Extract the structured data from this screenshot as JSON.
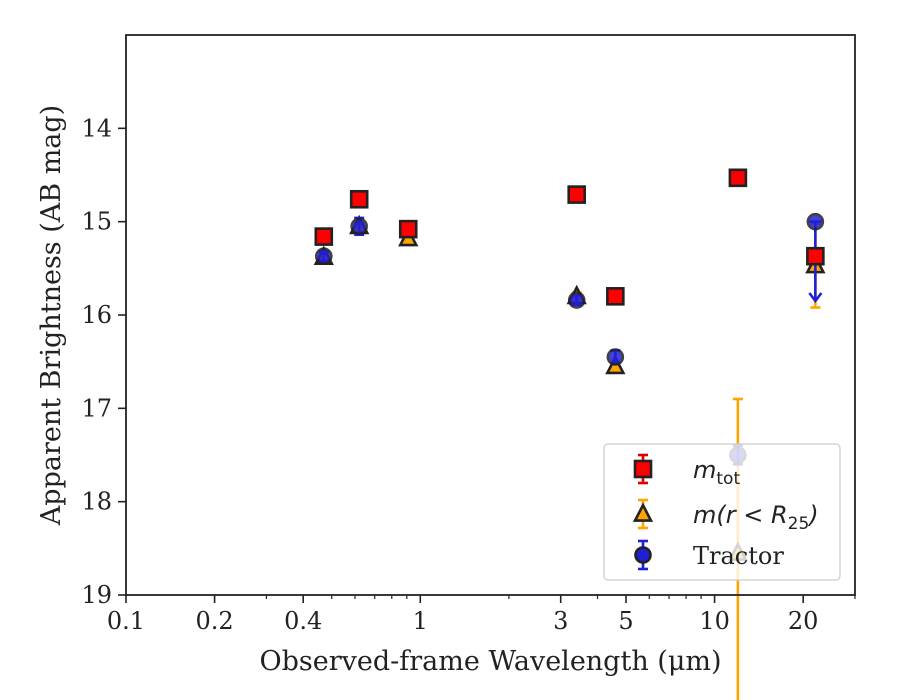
{
  "chart_data": {
    "type": "scatter",
    "xlabel": "Observed-frame Wavelength (μm)",
    "ylabel": "Apparent Brightness (AB mag)",
    "xscale": "log",
    "xlim": [
      0.1,
      30
    ],
    "ylim": [
      19,
      13
    ],
    "y_inverted": true,
    "grid": false,
    "legend_position": "lower right",
    "x_ticks": [
      {
        "value": 0.1,
        "label": "0.1"
      },
      {
        "value": 0.2,
        "label": "0.2"
      },
      {
        "value": 0.4,
        "label": "0.4"
      },
      {
        "value": 1,
        "label": "1"
      },
      {
        "value": 3,
        "label": "3"
      },
      {
        "value": 5,
        "label": "5"
      },
      {
        "value": 10,
        "label": "10"
      },
      {
        "value": 20,
        "label": "20"
      }
    ],
    "y_ticks": [
      {
        "value": 14,
        "label": "14"
      },
      {
        "value": 15,
        "label": "15"
      },
      {
        "value": 16,
        "label": "16"
      },
      {
        "value": 17,
        "label": "17"
      },
      {
        "value": 18,
        "label": "18"
      },
      {
        "value": 19,
        "label": "19"
      }
    ],
    "series": [
      {
        "name": "m_tot",
        "label_main": "m",
        "label_sub": "tot",
        "marker": "square",
        "color": "#ff0000",
        "edge_color": "#222222",
        "err_color": "#e00000",
        "points": [
          {
            "x": 0.47,
            "y": 15.16,
            "err": 0.06
          },
          {
            "x": 0.62,
            "y": 14.76,
            "err": 0.06
          },
          {
            "x": 0.91,
            "y": 15.08,
            "err": 0.06
          },
          {
            "x": 3.4,
            "y": 14.71,
            "err": 0.05
          },
          {
            "x": 4.6,
            "y": 15.8,
            "err": 0.05
          },
          {
            "x": 12.0,
            "y": 14.53,
            "err": 0.06
          },
          {
            "x": 22.0,
            "y": 15.37,
            "err": 0.07
          }
        ]
      },
      {
        "name": "m(r<R_25)",
        "label_main": "m(r < R",
        "label_sub": "25",
        "label_tail": ")",
        "marker": "triangle",
        "color": "#ffa500",
        "edge_color": "#222222",
        "err_color": "#ffa500",
        "points": [
          {
            "x": 0.47,
            "y": 15.38,
            "err": 0.04
          },
          {
            "x": 0.62,
            "y": 15.05,
            "err": 0.04
          },
          {
            "x": 0.91,
            "y": 15.18,
            "err": 0.04
          },
          {
            "x": 3.4,
            "y": 15.8,
            "err": 0.04
          },
          {
            "x": 4.6,
            "y": 16.55,
            "err": 0.04
          },
          {
            "x": 12.0,
            "y": 18.55,
            "err": 1.65
          },
          {
            "x": 22.0,
            "y": 15.47,
            "err": 0.45
          }
        ]
      },
      {
        "name": "Tractor",
        "label_main": "Tractor",
        "marker": "circle",
        "color": "#1f1fd6",
        "edge_color": "#222222",
        "err_color": "#1f1fd6",
        "points": [
          {
            "x": 0.47,
            "y": 15.37,
            "err": 0.05
          },
          {
            "x": 0.62,
            "y": 15.05,
            "err": 0.09
          },
          {
            "x": 0.91,
            "y": 15.08,
            "err": 0.06
          },
          {
            "x": 3.4,
            "y": 15.84,
            "err": 0.05
          },
          {
            "x": 4.6,
            "y": 16.45,
            "err": 0.07
          },
          {
            "x": 12.0,
            "y": 17.5,
            "err": 0.1
          },
          {
            "x": 22.0,
            "y": 15.0,
            "err": 0.85,
            "upper_limit": true
          }
        ]
      }
    ]
  }
}
